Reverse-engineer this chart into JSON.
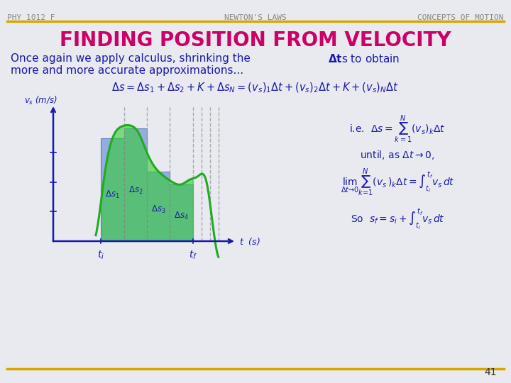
{
  "bg_color": "#e8eaf0",
  "header_text_left": "PHY 1012 F",
  "header_text_center": "NEWTON'S LAWS",
  "header_text_right": "CONCEPTS OF MOTION",
  "header_color": "#888888",
  "line_color": "#d4a800",
  "title": "FINDING POSITION FROM VELOCITY",
  "title_color": "#cc0066",
  "body_color": "#1a1aaa",
  "body_text1": "Once again we apply calculus, shrinking the ",
  "body_text2": "s to obtain",
  "body_text3": "more and more accurate approximations...",
  "delta_t_bold": true,
  "graph_blue": "#6688cc",
  "graph_blue_fill": "#7799dd",
  "graph_green": "#22aa22",
  "graph_green_fill": "#33cc33",
  "dashed_color": "#aaaaaa",
  "axis_color": "#1a1aaa",
  "label_color": "#1a1aaa",
  "page_number": "41",
  "vs_label": "v_s (m/s)",
  "t_label": "t  (s)",
  "ti_label": "t_i",
  "tf_label": "t_f",
  "ds1_label": "\\u0394s_1",
  "ds2_label": "\\u0394s_2",
  "ds3_label": "\\u0394s_3",
  "ds4_label": "\\u0394s_4",
  "ie_text": "i.e.",
  "until_text": "until, as",
  "so_text": "So"
}
